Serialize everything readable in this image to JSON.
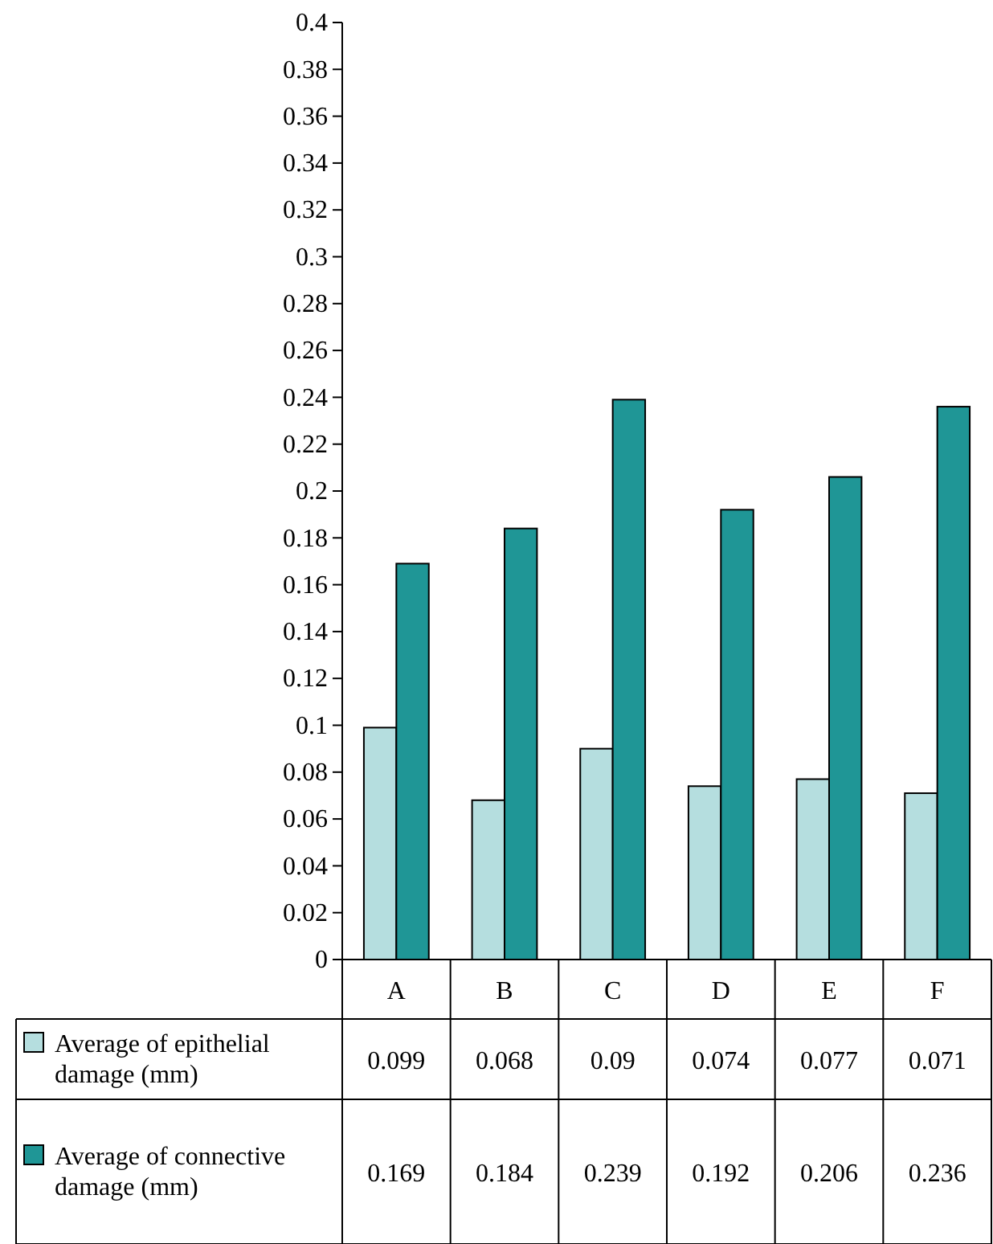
{
  "chart_data": {
    "type": "bar",
    "categories": [
      "A",
      "B",
      "C",
      "D",
      "E",
      "F"
    ],
    "series": [
      {
        "name": "Average of epithelial damage (mm)",
        "color": "#b5dedf",
        "values": [
          0.099,
          0.068,
          0.09,
          0.074,
          0.077,
          0.071
        ]
      },
      {
        "name": "Average of connective damage (mm)",
        "color": "#1f9696",
        "values": [
          0.169,
          0.184,
          0.239,
          0.192,
          0.206,
          0.236
        ]
      }
    ],
    "ylim": [
      0,
      0.4
    ],
    "yticks": [
      0,
      0.02,
      0.04,
      0.06,
      0.08,
      0.1,
      0.12,
      0.14,
      0.16,
      0.18,
      0.2,
      0.22,
      0.24,
      0.26,
      0.28,
      0.3,
      0.32,
      0.34,
      0.36,
      0.38,
      0.4
    ],
    "data_labels": true,
    "legend": "bottom left",
    "grid": false
  }
}
